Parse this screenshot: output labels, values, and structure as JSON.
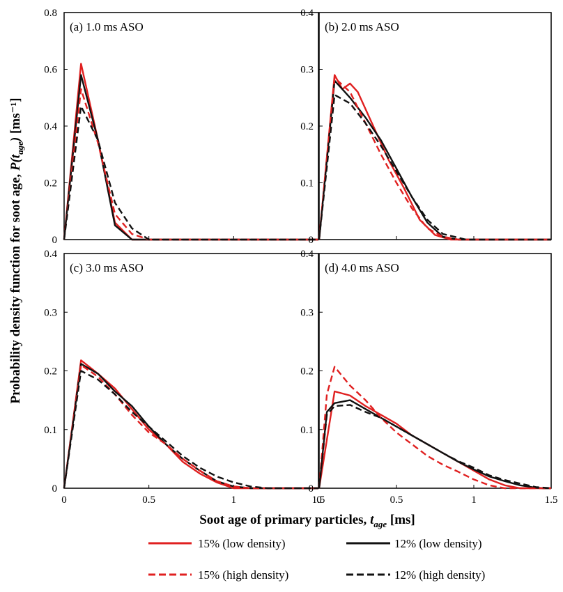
{
  "colors": {
    "red": "#e02020",
    "black": "#111111"
  },
  "figure": {
    "ylabel_main": "Probability density function for soot age, ",
    "ylabel_p": "P(",
    "ylabel_t": "t",
    "ylabel_sub": "age",
    "ylabel_close": ")",
    "ylabel_unit": " [ms⁻¹]",
    "xlabel_main": "Soot age of primary particles, ",
    "xlabel_t": "t",
    "xlabel_sub": "age",
    "xlabel_unit": " [ms]"
  },
  "legend": [
    {
      "label": "15% (low density)",
      "color": "red",
      "dash": false
    },
    {
      "label": "12% (low density)",
      "color": "black",
      "dash": false
    },
    {
      "label": "15% (high density)",
      "color": "red",
      "dash": true
    },
    {
      "label": "12% (high density)",
      "color": "black",
      "dash": true
    }
  ],
  "chart_data": [
    {
      "type": "line",
      "title": "(a) 1.0 ms ASO",
      "xlim": [
        0,
        1.5
      ],
      "ylim": [
        0,
        0.8
      ],
      "xticks": [
        "0",
        "0.5",
        "1",
        "1.5"
      ],
      "xtick_values": [
        0,
        0.5,
        1,
        1.5
      ],
      "yticks": [
        "0",
        "0.2",
        "0.4",
        "0.6",
        "0.8"
      ],
      "ytick_values": [
        0,
        0.2,
        0.4,
        0.6,
        0.8
      ],
      "series": [
        {
          "legend": 0,
          "points": [
            [
              0,
              0
            ],
            [
              0.1,
              0.62
            ],
            [
              0.2,
              0.35
            ],
            [
              0.3,
              0.06
            ],
            [
              0.4,
              0
            ],
            [
              1.5,
              0
            ]
          ]
        },
        {
          "legend": 1,
          "points": [
            [
              0,
              0
            ],
            [
              0.1,
              0.58
            ],
            [
              0.2,
              0.35
            ],
            [
              0.3,
              0.05
            ],
            [
              0.4,
              0
            ],
            [
              1.5,
              0
            ]
          ]
        },
        {
          "legend": 2,
          "points": [
            [
              0,
              0
            ],
            [
              0.1,
              0.53
            ],
            [
              0.2,
              0.34
            ],
            [
              0.3,
              0.09
            ],
            [
              0.4,
              0.02
            ],
            [
              0.5,
              0
            ],
            [
              1.5,
              0
            ]
          ]
        },
        {
          "legend": 3,
          "points": [
            [
              0,
              0
            ],
            [
              0.1,
              0.47
            ],
            [
              0.2,
              0.35
            ],
            [
              0.3,
              0.13
            ],
            [
              0.4,
              0.04
            ],
            [
              0.5,
              0
            ],
            [
              1.5,
              0
            ]
          ]
        }
      ]
    },
    {
      "type": "line",
      "title": "(b) 2.0 ms ASO",
      "xlim": [
        0,
        1.5
      ],
      "ylim": [
        0,
        0.4
      ],
      "xticks": [
        "0",
        "0.5",
        "1",
        "1.5"
      ],
      "xtick_values": [
        0,
        0.5,
        1,
        1.5
      ],
      "yticks": [
        "0",
        "0.1",
        "0.2",
        "0.3",
        "0.4"
      ],
      "ytick_values": [
        0,
        0.1,
        0.2,
        0.3,
        0.4
      ],
      "series": [
        {
          "legend": 0,
          "points": [
            [
              0,
              0
            ],
            [
              0.1,
              0.29
            ],
            [
              0.15,
              0.265
            ],
            [
              0.2,
              0.275
            ],
            [
              0.25,
              0.26
            ],
            [
              0.35,
              0.2
            ],
            [
              0.45,
              0.14
            ],
            [
              0.55,
              0.09
            ],
            [
              0.65,
              0.035
            ],
            [
              0.75,
              0.008
            ],
            [
              0.85,
              0
            ],
            [
              1.5,
              0
            ]
          ]
        },
        {
          "legend": 1,
          "points": [
            [
              0,
              0
            ],
            [
              0.1,
              0.28
            ],
            [
              0.2,
              0.25
            ],
            [
              0.3,
              0.215
            ],
            [
              0.4,
              0.175
            ],
            [
              0.5,
              0.125
            ],
            [
              0.6,
              0.075
            ],
            [
              0.7,
              0.03
            ],
            [
              0.8,
              0.005
            ],
            [
              0.9,
              0
            ],
            [
              1.5,
              0
            ]
          ]
        },
        {
          "legend": 2,
          "points": [
            [
              0,
              0
            ],
            [
              0.1,
              0.285
            ],
            [
              0.2,
              0.26
            ],
            [
              0.3,
              0.205
            ],
            [
              0.4,
              0.15
            ],
            [
              0.5,
              0.1
            ],
            [
              0.6,
              0.055
            ],
            [
              0.7,
              0.02
            ],
            [
              0.8,
              0.005
            ],
            [
              0.9,
              0
            ],
            [
              1.5,
              0
            ]
          ]
        },
        {
          "legend": 3,
          "points": [
            [
              0,
              0
            ],
            [
              0.1,
              0.255
            ],
            [
              0.2,
              0.24
            ],
            [
              0.3,
              0.205
            ],
            [
              0.4,
              0.165
            ],
            [
              0.5,
              0.12
            ],
            [
              0.6,
              0.075
            ],
            [
              0.7,
              0.035
            ],
            [
              0.8,
              0.01
            ],
            [
              0.95,
              0
            ],
            [
              1.5,
              0
            ]
          ]
        }
      ]
    },
    {
      "type": "line",
      "title": "(c) 3.0 ms ASO",
      "xlim": [
        0,
        1.5
      ],
      "ylim": [
        0,
        0.4
      ],
      "xticks": [
        "0",
        "0.5",
        "1",
        "1.5"
      ],
      "xtick_values": [
        0,
        0.5,
        1,
        1.5
      ],
      "yticks": [
        "0",
        "0.1",
        "0.2",
        "0.3",
        "0.4"
      ],
      "ytick_values": [
        0,
        0.1,
        0.2,
        0.3,
        0.4
      ],
      "series": [
        {
          "legend": 0,
          "points": [
            [
              0,
              0
            ],
            [
              0.1,
              0.218
            ],
            [
              0.2,
              0.195
            ],
            [
              0.3,
              0.17
            ],
            [
              0.4,
              0.135
            ],
            [
              0.5,
              0.1
            ],
            [
              0.6,
              0.075
            ],
            [
              0.7,
              0.045
            ],
            [
              0.8,
              0.025
            ],
            [
              0.9,
              0.01
            ],
            [
              1.0,
              0
            ],
            [
              1.5,
              0
            ]
          ]
        },
        {
          "legend": 1,
          "points": [
            [
              0,
              0
            ],
            [
              0.1,
              0.212
            ],
            [
              0.2,
              0.195
            ],
            [
              0.3,
              0.165
            ],
            [
              0.4,
              0.14
            ],
            [
              0.5,
              0.105
            ],
            [
              0.6,
              0.075
            ],
            [
              0.7,
              0.05
            ],
            [
              0.8,
              0.03
            ],
            [
              0.9,
              0.012
            ],
            [
              1.0,
              0.003
            ],
            [
              1.1,
              0
            ],
            [
              1.5,
              0
            ]
          ]
        },
        {
          "legend": 2,
          "points": [
            [
              0,
              0
            ],
            [
              0.1,
              0.21
            ],
            [
              0.2,
              0.19
            ],
            [
              0.3,
              0.16
            ],
            [
              0.4,
              0.125
            ],
            [
              0.5,
              0.095
            ],
            [
              0.6,
              0.075
            ],
            [
              0.7,
              0.05
            ],
            [
              0.8,
              0.03
            ],
            [
              0.9,
              0.012
            ],
            [
              1.0,
              0.003
            ],
            [
              1.1,
              0
            ],
            [
              1.5,
              0
            ]
          ]
        },
        {
          "legend": 3,
          "points": [
            [
              0,
              0
            ],
            [
              0.1,
              0.2
            ],
            [
              0.2,
              0.185
            ],
            [
              0.3,
              0.16
            ],
            [
              0.4,
              0.13
            ],
            [
              0.5,
              0.105
            ],
            [
              0.6,
              0.08
            ],
            [
              0.7,
              0.055
            ],
            [
              0.8,
              0.035
            ],
            [
              0.9,
              0.02
            ],
            [
              1.0,
              0.01
            ],
            [
              1.1,
              0.003
            ],
            [
              1.2,
              0
            ],
            [
              1.5,
              0
            ]
          ]
        }
      ]
    },
    {
      "type": "line",
      "title": "(d) 4.0 ms ASO",
      "xlim": [
        0,
        1.5
      ],
      "ylim": [
        0,
        0.4
      ],
      "xticks": [
        "0",
        "0.5",
        "1",
        "1.5"
      ],
      "xtick_values": [
        0,
        0.5,
        1,
        1.5
      ],
      "yticks": [
        "0",
        "0.1",
        "0.2",
        "0.3",
        "0.4"
      ],
      "ytick_values": [
        0,
        0.1,
        0.2,
        0.3,
        0.4
      ],
      "series": [
        {
          "legend": 0,
          "points": [
            [
              0,
              0
            ],
            [
              0.1,
              0.165
            ],
            [
              0.2,
              0.158
            ],
            [
              0.3,
              0.14
            ],
            [
              0.4,
              0.125
            ],
            [
              0.5,
              0.11
            ],
            [
              0.6,
              0.09
            ],
            [
              0.7,
              0.075
            ],
            [
              0.8,
              0.06
            ],
            [
              0.9,
              0.045
            ],
            [
              1.0,
              0.03
            ],
            [
              1.1,
              0.015
            ],
            [
              1.2,
              0.005
            ],
            [
              1.3,
              0
            ],
            [
              1.5,
              0
            ]
          ]
        },
        {
          "legend": 1,
          "points": [
            [
              0,
              0
            ],
            [
              0.05,
              0.13
            ],
            [
              0.1,
              0.145
            ],
            [
              0.2,
              0.15
            ],
            [
              0.3,
              0.135
            ],
            [
              0.4,
              0.12
            ],
            [
              0.5,
              0.105
            ],
            [
              0.6,
              0.09
            ],
            [
              0.7,
              0.075
            ],
            [
              0.8,
              0.06
            ],
            [
              0.9,
              0.045
            ],
            [
              1.0,
              0.032
            ],
            [
              1.1,
              0.02
            ],
            [
              1.2,
              0.012
            ],
            [
              1.3,
              0.005
            ],
            [
              1.4,
              0.001
            ],
            [
              1.45,
              0
            ],
            [
              1.5,
              0
            ]
          ]
        },
        {
          "legend": 2,
          "points": [
            [
              0,
              0
            ],
            [
              0.05,
              0.16
            ],
            [
              0.1,
              0.207
            ],
            [
              0.2,
              0.175
            ],
            [
              0.3,
              0.15
            ],
            [
              0.4,
              0.12
            ],
            [
              0.5,
              0.095
            ],
            [
              0.6,
              0.075
            ],
            [
              0.7,
              0.055
            ],
            [
              0.8,
              0.04
            ],
            [
              0.9,
              0.028
            ],
            [
              1.0,
              0.015
            ],
            [
              1.1,
              0.005
            ],
            [
              1.2,
              0
            ],
            [
              1.5,
              0
            ]
          ]
        },
        {
          "legend": 3,
          "points": [
            [
              0,
              0
            ],
            [
              0.05,
              0.125
            ],
            [
              0.1,
              0.14
            ],
            [
              0.2,
              0.142
            ],
            [
              0.3,
              0.13
            ],
            [
              0.4,
              0.12
            ],
            [
              0.5,
              0.105
            ],
            [
              0.6,
              0.09
            ],
            [
              0.7,
              0.075
            ],
            [
              0.8,
              0.06
            ],
            [
              0.9,
              0.046
            ],
            [
              1.0,
              0.035
            ],
            [
              1.1,
              0.022
            ],
            [
              1.2,
              0.014
            ],
            [
              1.3,
              0.008
            ],
            [
              1.4,
              0.002
            ],
            [
              1.5,
              0
            ]
          ]
        }
      ]
    }
  ]
}
